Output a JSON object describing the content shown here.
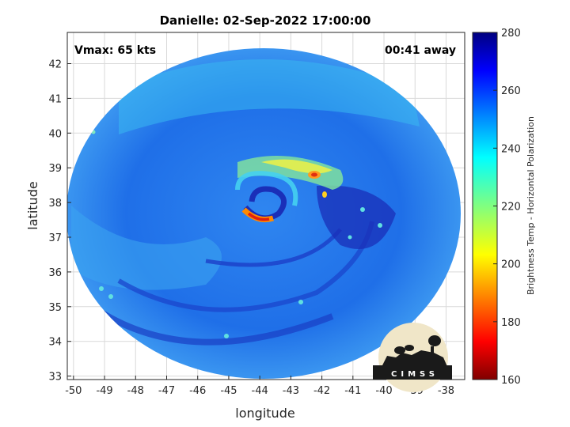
{
  "header": {
    "title": "Danielle: 02-Sep-2022 17:00:00"
  },
  "annotations": {
    "vmax": "Vmax: 65 kts",
    "time_away": "00:41 away"
  },
  "map": {
    "xlabel": "longitude",
    "ylabel": "latitude",
    "xlim": [
      -50.2,
      -37.4
    ],
    "ylim": [
      32.9,
      42.9
    ],
    "xticks": [
      -50,
      -49,
      -48,
      -47,
      -46,
      -45,
      -44,
      -43,
      -42,
      -41,
      -40,
      -39,
      -38
    ],
    "yticks": [
      33,
      34,
      35,
      36,
      37,
      38,
      39,
      40,
      41,
      42
    ],
    "xtick_labels": [
      "-50",
      "-49",
      "-48",
      "-47",
      "-46",
      "-45",
      "-44",
      "-43",
      "-42",
      "-41",
      "-40",
      "-39",
      "-38"
    ],
    "ytick_labels": [
      "33",
      "34",
      "35",
      "36",
      "37",
      "38",
      "39",
      "40",
      "41",
      "42"
    ],
    "grid": true,
    "swath_center": [
      -43.7,
      37.8
    ],
    "storm_center": [
      -43.6,
      37.8
    ],
    "background_color": "#1f6fe8"
  },
  "colorbar": {
    "label": "Brightness Temp - Horizontal Polarization",
    "min": 160,
    "max": 280,
    "ticks": [
      160,
      180,
      200,
      220,
      240,
      260,
      280
    ],
    "tick_labels": [
      "160",
      "180",
      "200",
      "220",
      "240",
      "260",
      "280"
    ],
    "colormap": "jet"
  },
  "logo": {
    "text": "CIMSS",
    "icon": "cimss-logo-icon"
  }
}
